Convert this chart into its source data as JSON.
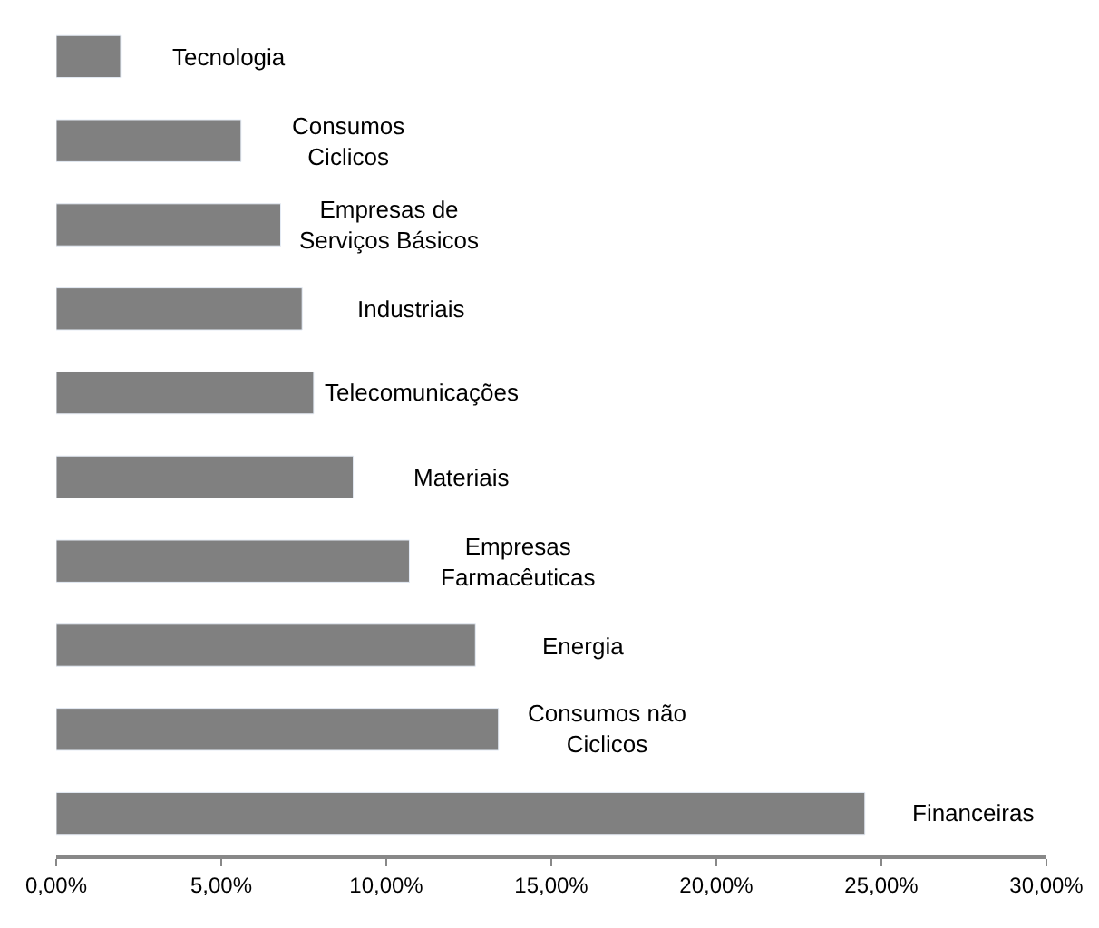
{
  "chart_data": {
    "type": "bar",
    "orientation": "horizontal",
    "categories": [
      "Tecnologia",
      "Consumos Ciclicos",
      "Empresas de Serviços Básicos",
      "Industriais",
      "Telecomunicações",
      "Materiais",
      "Empresas Farmacêuticas",
      "Energia",
      "Consumos não Ciclicos",
      "Financeiras"
    ],
    "values": [
      1.95,
      5.6,
      6.8,
      7.45,
      7.8,
      9.0,
      10.7,
      12.7,
      13.4,
      24.5
    ],
    "color": "#808080",
    "xlim": [
      0,
      30
    ],
    "xticks": [
      {
        "value": 0,
        "label": "0,00%"
      },
      {
        "value": 5,
        "label": "5,00%"
      },
      {
        "value": 10,
        "label": "10,00%"
      },
      {
        "value": 15,
        "label": "15,00%"
      },
      {
        "value": 20,
        "label": "20,00%"
      },
      {
        "value": 25,
        "label": "25,00%"
      },
      {
        "value": 30,
        "label": "30,00%"
      }
    ],
    "tick_labels": "x"
  }
}
